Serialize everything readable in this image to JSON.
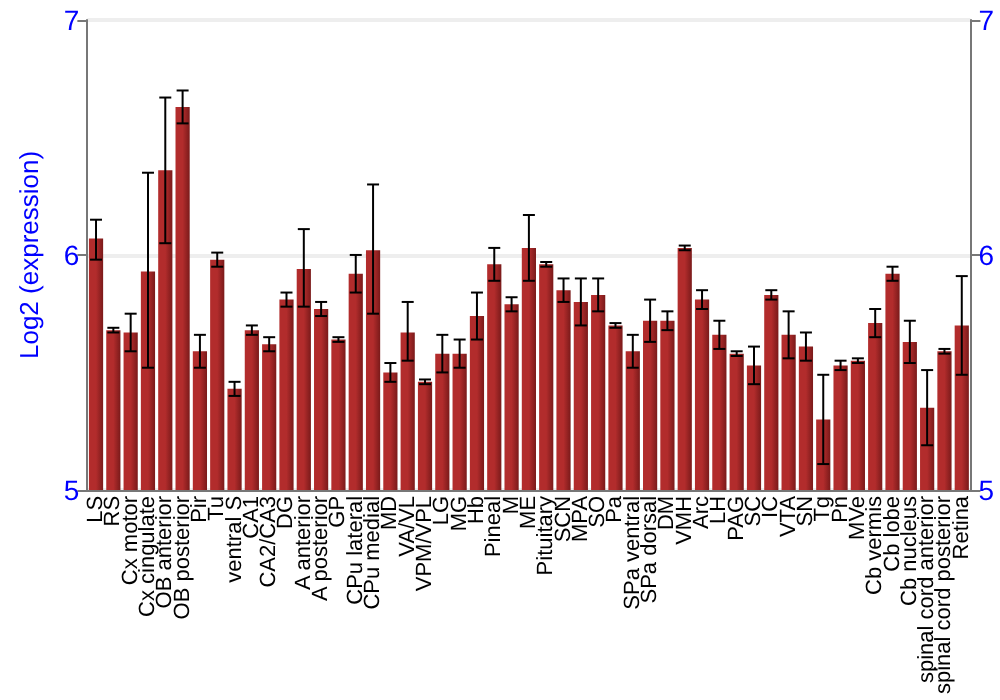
{
  "chart_data": {
    "type": "bar",
    "ylabel": "Log2 (expression)",
    "categories": [
      "LS",
      "RS",
      "Cx motor",
      "Cx cingulate",
      "OB anterior",
      "OB posterior",
      "Pir",
      "Tu",
      "ventral S",
      "CA1",
      "CA2/CA3",
      "DG",
      "A anterior",
      "A posterior",
      "GP",
      "CPu lateral",
      "CPu medial",
      "MD",
      "VA/VL",
      "VPM/VPL",
      "LG",
      "MG",
      "Hb",
      "Pineal",
      "M",
      "ME",
      "Pituitary",
      "SCN",
      "MPA",
      "SO",
      "Pa",
      "SPa ventral",
      "SPa dorsal",
      "DM",
      "VMH",
      "Arc",
      "LH",
      "PAG",
      "SC",
      "IC",
      "VTA",
      "SN",
      "Tg",
      "Pn",
      "MVe",
      "Cb vermis",
      "Cb lobe",
      "Cb nucleus",
      "spinal cord anterior",
      "spinal cord posterior",
      "Retina"
    ],
    "values": [
      6.07,
      5.68,
      5.67,
      5.93,
      6.36,
      6.63,
      5.59,
      5.98,
      5.43,
      5.68,
      5.62,
      5.81,
      5.94,
      5.77,
      5.64,
      5.92,
      6.02,
      5.5,
      5.67,
      5.46,
      5.58,
      5.58,
      5.74,
      5.96,
      5.79,
      6.03,
      5.96,
      5.85,
      5.8,
      5.83,
      5.7,
      5.59,
      5.72,
      5.72,
      6.03,
      5.81,
      5.66,
      5.58,
      5.53,
      5.83,
      5.66,
      5.61,
      5.3,
      5.53,
      5.55,
      5.71,
      5.92,
      5.63,
      5.35,
      5.59,
      5.7
    ],
    "errors": [
      [
        5.98,
        6.15
      ],
      0.01,
      0.08,
      [
        5.52,
        6.35
      ],
      [
        6.05,
        6.67
      ],
      0.07,
      0.07,
      0.03,
      0.03,
      0.02,
      0.03,
      0.03,
      [
        5.78,
        6.11
      ],
      0.03,
      0.01,
      0.08,
      [
        5.75,
        6.3
      ],
      0.04,
      [
        5.55,
        5.8
      ],
      0.01,
      0.08,
      0.06,
      0.1,
      0.07,
      0.03,
      0.14,
      0.01,
      0.05,
      0.1,
      0.07,
      0.01,
      0.07,
      0.09,
      0.04,
      0.01,
      0.04,
      0.06,
      0.01,
      0.08,
      0.02,
      0.1,
      0.06,
      0.19,
      0.02,
      0.01,
      0.06,
      0.03,
      0.09,
      0.16,
      0.01,
      0.21
    ],
    "color": "#b22c2c",
    "ylim": [
      5,
      7
    ],
    "yticks": [
      5,
      6,
      7
    ],
    "y2lim": [
      5,
      7
    ],
    "y2ticks": [
      5,
      6,
      7
    ],
    "grid": "y"
  }
}
